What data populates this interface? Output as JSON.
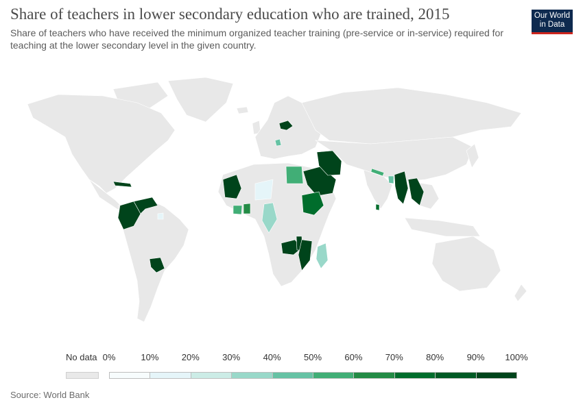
{
  "header": {
    "title": "Share of teachers in lower secondary education who are trained, 2015",
    "subtitle": "Share of teachers who have received the minimum organized teacher training (pre-service or in-service) required for teaching at the lower secondary level in the given country."
  },
  "logo": {
    "line1": "Our World",
    "line2": "in Data",
    "bg_color": "#0e2a4f",
    "accent_color": "#ce261e"
  },
  "legend": {
    "no_data_label": "No data",
    "no_data_color": "#e9e9e9",
    "tick_labels": [
      "0%",
      "10%",
      "20%",
      "30%",
      "40%",
      "50%",
      "60%",
      "70%",
      "80%",
      "90%",
      "100%"
    ],
    "colors": [
      "#f7fcfd",
      "#e5f5f9",
      "#ccece6",
      "#99d8c9",
      "#66c2a4",
      "#41ae76",
      "#238b45",
      "#006d2c",
      "#005a24",
      "#00441b"
    ]
  },
  "source": "Source: World Bank",
  "map_data": {
    "type": "choropleth",
    "year": 2015,
    "countries_with_data": [
      {
        "name": "Belarus",
        "color_bin": 9
      },
      {
        "name": "Serbia",
        "color_bin": 4
      },
      {
        "name": "Egypt",
        "color_bin": 5
      },
      {
        "name": "Saudi Arabia",
        "color_bin": 9
      },
      {
        "name": "Iran",
        "color_bin": 9
      },
      {
        "name": "Nepal",
        "color_bin": 5
      },
      {
        "name": "Bangladesh",
        "color_bin": 4
      },
      {
        "name": "Sri Lanka",
        "color_bin": 7
      },
      {
        "name": "Myanmar",
        "color_bin": 9
      },
      {
        "name": "Laos",
        "color_bin": 9
      },
      {
        "name": "Mauritania",
        "color_bin": 9
      },
      {
        "name": "Niger",
        "color_bin": 1
      },
      {
        "name": "Ghana",
        "color_bin": 6
      },
      {
        "name": "Cote d'Ivoire",
        "color_bin": 5
      },
      {
        "name": "Congo",
        "color_bin": 3
      },
      {
        "name": "Ethiopia",
        "color_bin": 7
      },
      {
        "name": "Zambia",
        "color_bin": 9
      },
      {
        "name": "Malawi",
        "color_bin": 9
      },
      {
        "name": "Mozambique",
        "color_bin": 9
      },
      {
        "name": "Madagascar",
        "color_bin": 3
      },
      {
        "name": "Colombia",
        "color_bin": 9
      },
      {
        "name": "Venezuela",
        "color_bin": 9
      },
      {
        "name": "Paraguay",
        "color_bin": 9
      },
      {
        "name": "Cuba",
        "color_bin": 9
      },
      {
        "name": "Suriname",
        "color_bin": 1
      }
    ]
  }
}
